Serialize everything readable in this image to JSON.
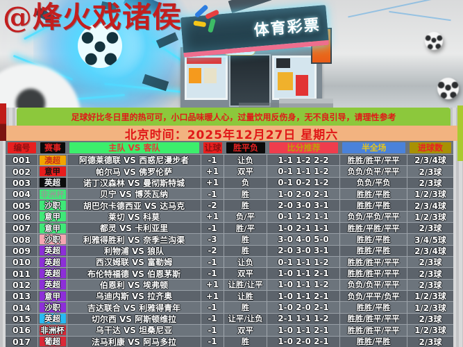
{
  "watermark": "@烽火戏诸侯",
  "hero": {
    "sign_text": "体育彩票"
  },
  "notice": "足球好比冬日里的热可可，小口品味暖人心，过量饮用反伤身，无不良引导，请理性参考",
  "datetime_banner": "北京时间：2025年12月27日 星期六",
  "colors": {
    "notice_bg": "#8cc83c",
    "datetime_bg": "#f2b380",
    "banner_text": "#e01818",
    "row_dark": "#5c636b",
    "row_light": "#6c747c"
  },
  "table": {
    "columns": [
      {
        "label": "编号",
        "bg": "#e81f1f",
        "fg": "#8c1212"
      },
      {
        "label": "赛事",
        "bg": "#0a0a0a",
        "fg": "#e82222"
      },
      {
        "label": "主队 VS 客队",
        "bg": "#3cee6c",
        "fg": "#e83434"
      },
      {
        "label": "让球",
        "bg": "#e81f1f",
        "fg": "#8c1212"
      },
      {
        "label": "胜平负",
        "bg": "#0a0a0a",
        "fg": "#e82222"
      },
      {
        "label": "比分推荐",
        "bg": "#ef3d4d",
        "fg": "#bfa10a"
      },
      {
        "label": "半全场",
        "bg": "#4a82da",
        "fg": "#e6c41c"
      },
      {
        "label": "进球数",
        "bg": "#a89104",
        "fg": "#e82222"
      }
    ],
    "rows": [
      {
        "id": "001",
        "league": "澳超",
        "league_bg": "#f2a400",
        "league_fg": "#c83218",
        "match": "阿德莱德联 VS 西惑尼漫步者",
        "handicap": "-1",
        "wdl": "让负",
        "score_rec": "1-1 1-2 2-2",
        "half_full": "胜胜/胜平/平平",
        "goals": "2/3/4球"
      },
      {
        "id": "002",
        "league": "意甲",
        "league_bg": "#e81c1c",
        "league_fg": "#141414",
        "match": "帕尔马 VS 佛罗伦萨",
        "handicap": "+1",
        "wdl": "双平",
        "score_rec": "0-1 1-1 1-2",
        "half_full": "负负/负平/平平",
        "goals": "2/3球"
      },
      {
        "id": "003",
        "league": "英超",
        "league_bg": "#0c0c0c",
        "league_fg": "#f2f2f2",
        "match": "诺丁汉森林 VS 曼彻斯特城",
        "handicap": "+1",
        "wdl": "负",
        "score_rec": "0-1 0-2 1-2",
        "half_full": "负负/平负",
        "goals": "2/3球"
      },
      {
        "id": "004",
        "league": "非洲杯",
        "league_bg": "#3fe878",
        "league_fg": "#8e9f92",
        "match": "贝宁 VS 博茨瓦纳",
        "handicap": "-1",
        "wdl": "胜",
        "score_rec": "1-0 2-0 2-1",
        "half_full": "胜胜/平胜",
        "goals": "1/2/3球"
      },
      {
        "id": "005",
        "league": "沙职",
        "league_bg": "#3fe878",
        "league_fg": "#ffffff",
        "match": "胡巴尔卡德西亚 VS 达马克",
        "handicap": "-2",
        "wdl": "胜",
        "score_rec": "2-0 3-0 3-1",
        "half_full": "胜胜/平胜",
        "goals": "2/3/4球"
      },
      {
        "id": "006",
        "league": "意甲",
        "league_bg": "#3fe878",
        "league_fg": "#ffffff",
        "match": "莱切 VS 科莫",
        "handicap": "+1",
        "wdl": "负/平",
        "score_rec": "0-1 1-2 1-1",
        "half_full": "负负/平负/平平",
        "goals": "1/2/3球"
      },
      {
        "id": "007",
        "league": "意甲",
        "league_bg": "#3fe878",
        "league_fg": "#ffffff",
        "match": "都灵 VS 卡利亚里",
        "handicap": "-1",
        "wdl": "胜/平",
        "score_rec": "1-0 2-1 1-1",
        "half_full": "胜胜/平胜/平平",
        "goals": "2/3球"
      },
      {
        "id": "008",
        "league": "沙职",
        "league_bg": "#f4a6b2",
        "league_fg": "#ffffff",
        "match": "利雅得胜利 VS 奈季兰沟渠",
        "handicap": "-3",
        "wdl": "胜",
        "score_rec": "3-0 4-0 5-0",
        "half_full": "胜胜/平胜",
        "goals": "3/4/5球"
      },
      {
        "id": "009",
        "league": "英超",
        "league_bg": "#8d2fd8",
        "league_fg": "#ffffff",
        "match": "利物浦 VS 狼队",
        "handicap": "-2",
        "wdl": "胜",
        "score_rec": "2-0 3-0 3-1",
        "half_full": "胜胜/平胜",
        "goals": "2/3/4球"
      },
      {
        "id": "010",
        "league": "英超",
        "league_bg": "#8d2fd8",
        "league_fg": "#ffffff",
        "match": "西汉姆联 VS 富勒姆",
        "handicap": "-1",
        "wdl": "让负",
        "score_rec": "0-1 1-1 1-2",
        "half_full": "胜胜/胜平/平平",
        "goals": "2/3球"
      },
      {
        "id": "011",
        "league": "英超",
        "league_bg": "#8d2fd8",
        "league_fg": "#ffffff",
        "match": "布伦特福德 VS 伯恩茅斯",
        "handicap": "-1",
        "wdl": "双平",
        "score_rec": "1-0 1-1 2-1",
        "half_full": "胜胜/胜平/平平",
        "goals": "2/3球"
      },
      {
        "id": "012",
        "league": "英超",
        "league_bg": "#8d2fd8",
        "league_fg": "#ffffff",
        "match": "伯恩利 VS 埃弗顿",
        "handicap": "+1",
        "wdl": "让胜/让平",
        "score_rec": "1-0 1-1 1-2",
        "half_full": "负负/负平/平平",
        "goals": "2/3球"
      },
      {
        "id": "013",
        "league": "意甲",
        "league_bg": "#8d2fd8",
        "league_fg": "#ffffff",
        "match": "乌迪内斯 VS 拉齐奥",
        "handicap": "+1",
        "wdl": "让胜",
        "score_rec": "1-0 1-1 2-1",
        "half_full": "负负/平平/负平",
        "goals": "1/2/3球"
      },
      {
        "id": "014",
        "league": "沙职",
        "league_bg": "#8d2fd8",
        "league_fg": "#ffffff",
        "match": "吉达联合 VS 利雅得青年",
        "handicap": "-1",
        "wdl": "胜",
        "score_rec": "1-0 2-0 2-1",
        "half_full": "胜胜/平胜",
        "goals": "1/2/3球"
      },
      {
        "id": "015",
        "league": "英超",
        "league_bg": "#28baf2",
        "league_fg": "#ffffff",
        "match": "切尔西 VS 阿斯顿维拉",
        "handicap": "-1",
        "wdl": "让平/让负",
        "score_rec": "2-1 1-1 1-2",
        "half_full": "胜胜/胜平/平平",
        "goals": "2/3球"
      },
      {
        "id": "016",
        "league": "非洲杯",
        "league_bg": "#da2836",
        "league_fg": "#ffffff",
        "match": "乌干达 VS 坦桑尼亚",
        "handicap": "-1",
        "wdl": "双平",
        "score_rec": "1-0 1-1 2-1",
        "half_full": "胜胜/胜平/平平",
        "goals": "1/2/3球"
      },
      {
        "id": "017",
        "league": "葡超",
        "league_bg": "#da2836",
        "league_fg": "#ffffff",
        "match": "法马利康 VS 阿马多拉",
        "handicap": "-1",
        "wdl": "胜",
        "score_rec": "1-0 2-0 2-1",
        "half_full": "胜胜/平胜",
        "goals": "2/3球"
      }
    ]
  }
}
